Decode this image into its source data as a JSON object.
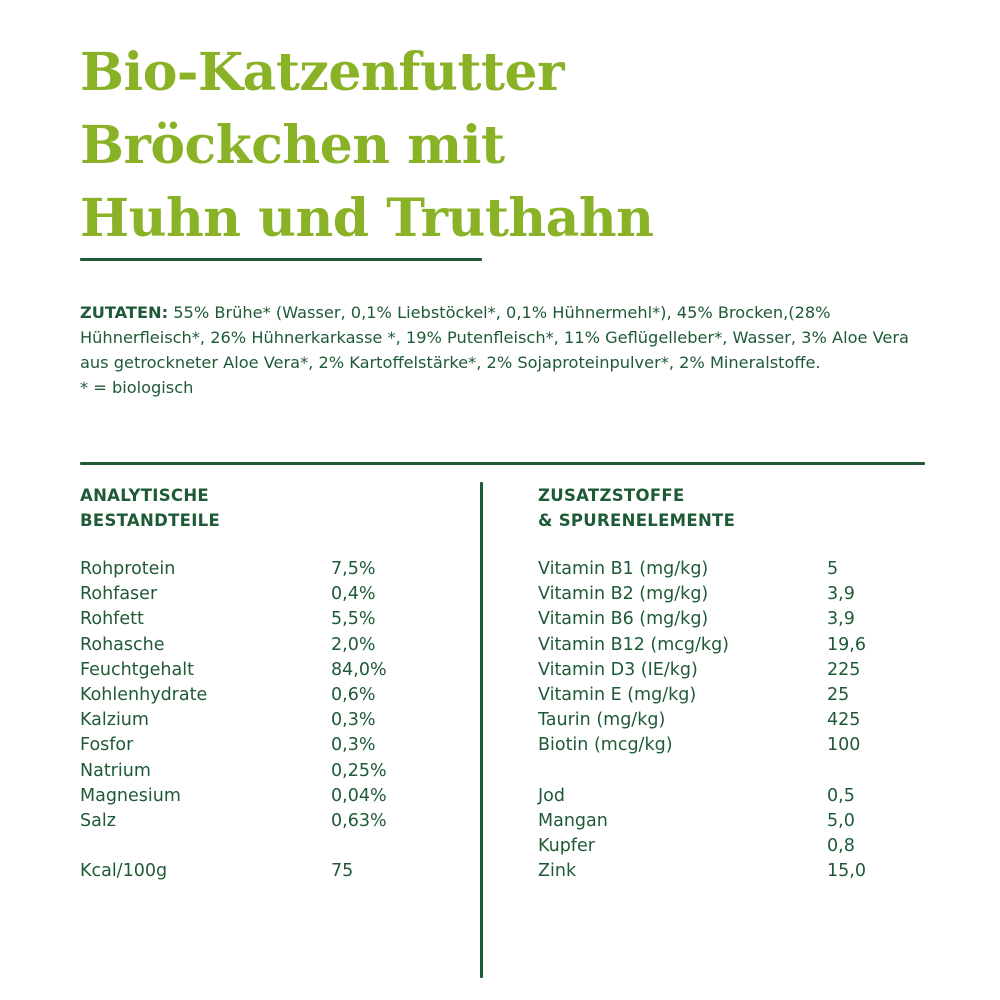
{
  "title": {
    "line1": "Bio-Katzenfutter",
    "line2": "Bröckchen mit",
    "line3": "Huhn und Truthahn"
  },
  "ingredients": {
    "label": "ZUTATEN:",
    "text": "55% Brühe* (Wasser, 0,1% Liebstöckel*, 0,1% Hühnermehl*), 45% Brocken,(28% Hühnerfleisch*, 26% Hühnerkarkasse *, 19% Putenfleisch*, 11% Geflügelleber*, Wasser, 3% Aloe Vera aus getrockneter Aloe Vera*, 2% Kartoffelstärke*, 2% Sojaproteinpulver*, 2% Mineralstoffe.",
    "footnote": "* = biologisch"
  },
  "analytic": {
    "header_line1": "ANALYTISCHE",
    "header_line2": "BESTANDTEILE",
    "rows": [
      {
        "name": "Rohprotein",
        "value": "7,5%"
      },
      {
        "name": "Rohfaser",
        "value": "0,4%"
      },
      {
        "name": "Rohfett",
        "value": "5,5%"
      },
      {
        "name": "Rohasche",
        "value": "2,0%"
      },
      {
        "name": "Feuchtgehalt",
        "value": "84,0%"
      },
      {
        "name": "Kohlenhydrate",
        "value": "0,6%"
      },
      {
        "name": "Kalzium",
        "value": "0,3%"
      },
      {
        "name": "Fosfor",
        "value": "0,3%"
      },
      {
        "name": "Natrium",
        "value": "0,25%"
      },
      {
        "name": "Magnesium",
        "value": "0,04%"
      },
      {
        "name": "Salz",
        "value": "0,63%"
      }
    ],
    "energy": {
      "name": "Kcal/100g",
      "value": "75"
    }
  },
  "additives": {
    "header_line1": "ZUSATZSTOFFE",
    "header_line2": "& SPURENELEMENTE",
    "vitamins": [
      {
        "name": "Vitamin B1 (mg/kg)",
        "value": "5"
      },
      {
        "name": "Vitamin B2 (mg/kg)",
        "value": "3,9"
      },
      {
        "name": "Vitamin B6 (mg/kg)",
        "value": "3,9"
      },
      {
        "name": "Vitamin B12 (mcg/kg)",
        "value": "19,6"
      },
      {
        "name": "Vitamin D3 (IE/kg)",
        "value": "225"
      },
      {
        "name": "Vitamin E (mg/kg)",
        "value": "25"
      },
      {
        "name": "Taurin (mg/kg)",
        "value": "425"
      },
      {
        "name": "Biotin (mcg/kg)",
        "value": "100"
      }
    ],
    "trace_elements": [
      {
        "name": "Jod",
        "value": "0,5"
      },
      {
        "name": "Mangan",
        "value": "5,0"
      },
      {
        "name": "Kupfer",
        "value": "0,8"
      },
      {
        "name": "Zink",
        "value": "15,0"
      }
    ]
  },
  "colors": {
    "title_green": "#8ab227",
    "text_dark_green": "#1f5a36",
    "background": "#ffffff"
  }
}
